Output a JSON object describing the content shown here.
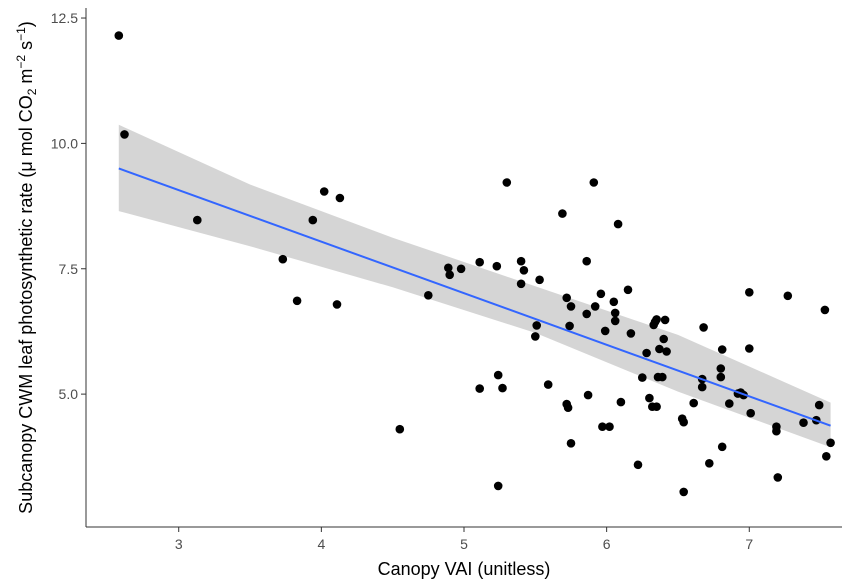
{
  "chart_data": {
    "type": "scatter",
    "title": "",
    "xlabel": "Canopy VAI (unitless)",
    "ylabel": {
      "prefix": "Subcanopy CWM leaf photosynthetic rate (",
      "mu": "μ",
      "mol": " mol CO",
      "co2_sub": "2",
      "m": " m",
      "m_sup": "−2",
      "s": " s",
      "s_sup": "−1",
      "suffix": ")"
    },
    "xlim": [
      2.35,
      7.65
    ],
    "ylim": [
      2.35,
      12.7
    ],
    "x_ticks": [
      3,
      4,
      5,
      6,
      7
    ],
    "y_ticks": [
      5.0,
      7.5,
      10.0,
      12.5
    ],
    "x_tick_labels": [
      "3",
      "4",
      "5",
      "6",
      "7"
    ],
    "y_tick_labels": [
      "5.0",
      "7.5",
      "10.0",
      "12.5"
    ],
    "grid": false,
    "points": [
      {
        "x": 2.58,
        "y": 12.15
      },
      {
        "x": 2.62,
        "y": 10.18
      },
      {
        "x": 3.13,
        "y": 8.47
      },
      {
        "x": 3.73,
        "y": 7.69
      },
      {
        "x": 3.83,
        "y": 6.86
      },
      {
        "x": 3.94,
        "y": 8.47
      },
      {
        "x": 4.02,
        "y": 9.04
      },
      {
        "x": 4.11,
        "y": 6.79
      },
      {
        "x": 4.13,
        "y": 8.91
      },
      {
        "x": 4.55,
        "y": 4.3
      },
      {
        "x": 4.75,
        "y": 6.97
      },
      {
        "x": 4.89,
        "y": 7.52
      },
      {
        "x": 4.9,
        "y": 7.38
      },
      {
        "x": 4.98,
        "y": 7.5
      },
      {
        "x": 5.11,
        "y": 7.63
      },
      {
        "x": 5.11,
        "y": 5.11
      },
      {
        "x": 5.23,
        "y": 7.55
      },
      {
        "x": 5.24,
        "y": 5.38
      },
      {
        "x": 5.24,
        "y": 3.17
      },
      {
        "x": 5.27,
        "y": 5.12
      },
      {
        "x": 5.3,
        "y": 9.22
      },
      {
        "x": 5.4,
        "y": 7.65
      },
      {
        "x": 5.4,
        "y": 7.2
      },
      {
        "x": 5.42,
        "y": 7.47
      },
      {
        "x": 5.5,
        "y": 6.15
      },
      {
        "x": 5.51,
        "y": 6.37
      },
      {
        "x": 5.53,
        "y": 7.28
      },
      {
        "x": 5.59,
        "y": 5.19
      },
      {
        "x": 5.69,
        "y": 8.6
      },
      {
        "x": 5.72,
        "y": 6.92
      },
      {
        "x": 5.72,
        "y": 4.8
      },
      {
        "x": 5.73,
        "y": 4.73
      },
      {
        "x": 5.74,
        "y": 6.36
      },
      {
        "x": 5.75,
        "y": 4.02
      },
      {
        "x": 5.75,
        "y": 6.75
      },
      {
        "x": 5.86,
        "y": 6.6
      },
      {
        "x": 5.86,
        "y": 7.65
      },
      {
        "x": 5.87,
        "y": 4.98
      },
      {
        "x": 5.91,
        "y": 9.22
      },
      {
        "x": 5.92,
        "y": 6.75
      },
      {
        "x": 5.96,
        "y": 7.0
      },
      {
        "x": 5.97,
        "y": 4.35
      },
      {
        "x": 5.99,
        "y": 6.26
      },
      {
        "x": 6.02,
        "y": 4.35
      },
      {
        "x": 6.05,
        "y": 6.84
      },
      {
        "x": 6.06,
        "y": 6.62
      },
      {
        "x": 6.06,
        "y": 6.46
      },
      {
        "x": 6.08,
        "y": 8.39
      },
      {
        "x": 6.1,
        "y": 4.84
      },
      {
        "x": 6.15,
        "y": 7.08
      },
      {
        "x": 6.17,
        "y": 6.21
      },
      {
        "x": 6.22,
        "y": 3.59
      },
      {
        "x": 6.25,
        "y": 5.33
      },
      {
        "x": 6.28,
        "y": 5.82
      },
      {
        "x": 6.3,
        "y": 4.92
      },
      {
        "x": 6.32,
        "y": 4.75
      },
      {
        "x": 6.33,
        "y": 6.38
      },
      {
        "x": 6.34,
        "y": 6.44
      },
      {
        "x": 6.35,
        "y": 6.49
      },
      {
        "x": 6.35,
        "y": 4.75
      },
      {
        "x": 6.36,
        "y": 5.34
      },
      {
        "x": 6.37,
        "y": 5.9
      },
      {
        "x": 6.39,
        "y": 5.34
      },
      {
        "x": 6.4,
        "y": 6.1
      },
      {
        "x": 6.41,
        "y": 6.48
      },
      {
        "x": 6.42,
        "y": 5.85
      },
      {
        "x": 6.53,
        "y": 4.51
      },
      {
        "x": 6.54,
        "y": 4.44
      },
      {
        "x": 6.54,
        "y": 3.05
      },
      {
        "x": 6.61,
        "y": 4.82
      },
      {
        "x": 6.67,
        "y": 5.3
      },
      {
        "x": 6.67,
        "y": 5.14
      },
      {
        "x": 6.68,
        "y": 6.33
      },
      {
        "x": 6.72,
        "y": 3.62
      },
      {
        "x": 6.8,
        "y": 5.51
      },
      {
        "x": 6.8,
        "y": 5.34
      },
      {
        "x": 6.81,
        "y": 5.89
      },
      {
        "x": 6.81,
        "y": 3.95
      },
      {
        "x": 6.86,
        "y": 4.81
      },
      {
        "x": 6.92,
        "y": 5.01
      },
      {
        "x": 6.94,
        "y": 5.03
      },
      {
        "x": 6.96,
        "y": 4.98
      },
      {
        "x": 7.0,
        "y": 7.03
      },
      {
        "x": 7.0,
        "y": 5.91
      },
      {
        "x": 7.01,
        "y": 4.62
      },
      {
        "x": 7.19,
        "y": 4.35
      },
      {
        "x": 7.19,
        "y": 4.26
      },
      {
        "x": 7.2,
        "y": 3.34
      },
      {
        "x": 7.27,
        "y": 6.96
      },
      {
        "x": 7.38,
        "y": 4.43
      },
      {
        "x": 7.47,
        "y": 4.48
      },
      {
        "x": 7.49,
        "y": 4.78
      },
      {
        "x": 7.53,
        "y": 6.68
      },
      {
        "x": 7.54,
        "y": 3.76
      },
      {
        "x": 7.57,
        "y": 4.03
      }
    ],
    "fit_line": {
      "x": [
        2.58,
        7.57
      ],
      "y": [
        9.5,
        4.37
      ],
      "color": "#3366ff"
    },
    "confidence_band": {
      "x": [
        2.58,
        3.5,
        4.5,
        5.5,
        6.5,
        7.57
      ],
      "lower": [
        8.65,
        7.95,
        7.13,
        6.22,
        5.05,
        3.94
      ],
      "upper": [
        10.37,
        9.18,
        8.12,
        7.15,
        6.18,
        4.83
      ],
      "color": "#d3d3d3"
    },
    "point_color": "#000000",
    "axis_color": "#333333"
  }
}
